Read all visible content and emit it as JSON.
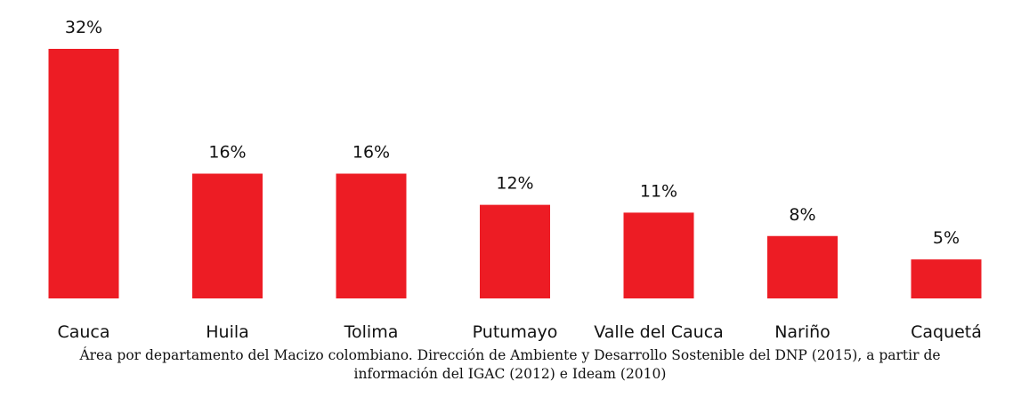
{
  "chart_data": {
    "type": "bar",
    "categories": [
      "Cauca",
      "Huila",
      "Tolima",
      "Putumayo",
      "Valle del Cauca",
      "Nariño",
      "Caquetá"
    ],
    "values": [
      32,
      16,
      16,
      12,
      11,
      8,
      5
    ],
    "value_labels": [
      "32%",
      "16%",
      "16%",
      "12%",
      "11%",
      "8%",
      "5%"
    ],
    "color": "#ed1c24",
    "caption": [
      "Área por departamento del Macizo colombiano. Dirección de Ambiente y Desarrollo Sostenible del DNP (2015), a partir de",
      "información del IGAC (2012) e Ideam (2010)"
    ]
  }
}
